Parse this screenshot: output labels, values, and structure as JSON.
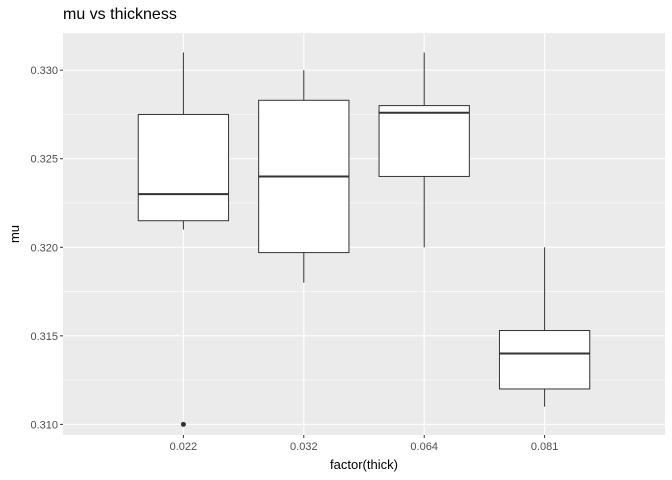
{
  "chart_data": {
    "type": "box",
    "title": "mu vs thickness",
    "xlabel": "factor(thick)",
    "ylabel": "mu",
    "categories": [
      "0.022",
      "0.032",
      "0.064",
      "0.081"
    ],
    "y_ticks": [
      0.31,
      0.315,
      0.32,
      0.325,
      0.33
    ],
    "y_tick_labels": [
      "0.310",
      "0.315",
      "0.320",
      "0.325",
      "0.330"
    ],
    "ylim": [
      0.3094,
      0.3321
    ],
    "grid": true,
    "boxes": [
      {
        "category": "0.022",
        "lower_whisker": 0.321,
        "q1": 0.3215,
        "median": 0.323,
        "q3": 0.3275,
        "upper_whisker": 0.331,
        "outliers": [
          0.31
        ]
      },
      {
        "category": "0.032",
        "lower_whisker": 0.318,
        "q1": 0.3197,
        "median": 0.324,
        "q3": 0.3283,
        "upper_whisker": 0.33,
        "outliers": []
      },
      {
        "category": "0.064",
        "lower_whisker": 0.32,
        "q1": 0.324,
        "median": 0.3276,
        "q3": 0.328,
        "upper_whisker": 0.331,
        "outliers": []
      },
      {
        "category": "0.081",
        "lower_whisker": 0.311,
        "q1": 0.312,
        "median": 0.314,
        "q3": 0.3153,
        "upper_whisker": 0.32,
        "outliers": []
      }
    ],
    "colors": {
      "panel": "#ebebeb",
      "grid_major": "#ffffff",
      "box_fill": "#ffffff",
      "box_stroke": "#333333",
      "outlier": "#333333"
    }
  }
}
